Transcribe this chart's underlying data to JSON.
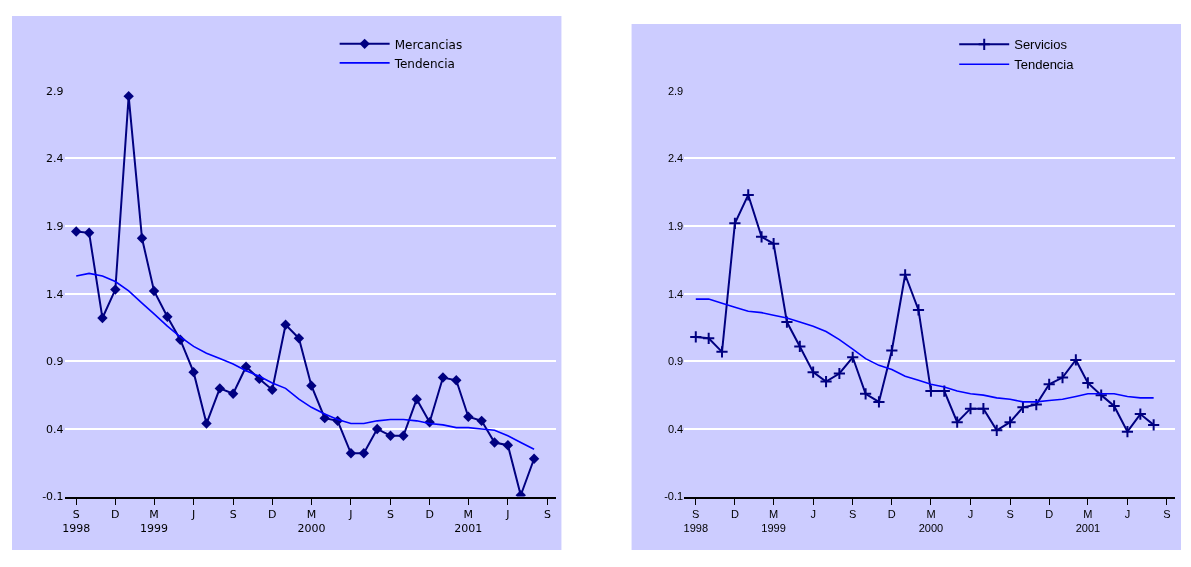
{
  "chart_data": [
    {
      "type": "line",
      "x": [
        "1998-09",
        "1998-10",
        "1998-11",
        "1998-12",
        "1999-01",
        "1999-02",
        "1999-03",
        "1999-04",
        "1999-05",
        "1999-06",
        "1999-07",
        "1999-08",
        "1999-09",
        "1999-10",
        "1999-11",
        "1999-12",
        "2000-01",
        "2000-02",
        "2000-03",
        "2000-04",
        "2000-05",
        "2000-06",
        "2000-07",
        "2000-08",
        "2000-09",
        "2000-10",
        "2000-11",
        "2000-12",
        "2001-01",
        "2001-02",
        "2001-03",
        "2001-04",
        "2001-05",
        "2001-06",
        "2001-07",
        "2001-08"
      ],
      "series": [
        {
          "name": "Mercancias",
          "color": "#000080",
          "marker": "diamond",
          "values": [
            1.86,
            1.85,
            1.22,
            1.43,
            2.86,
            1.81,
            1.42,
            1.23,
            1.06,
            0.82,
            0.44,
            0.7,
            0.66,
            0.86,
            0.77,
            0.69,
            1.17,
            1.07,
            0.72,
            0.48,
            0.46,
            0.22,
            0.22,
            0.4,
            0.35,
            0.35,
            0.62,
            0.45,
            0.78,
            0.76,
            0.49,
            0.46,
            0.3,
            0.28,
            -0.09,
            0.18
          ]
        },
        {
          "name": "Tendencia",
          "color": "#0000ff",
          "marker": "none",
          "values": [
            1.53,
            1.55,
            1.53,
            1.49,
            1.42,
            1.33,
            1.25,
            1.16,
            1.08,
            1.01,
            0.96,
            0.92,
            0.88,
            0.83,
            0.79,
            0.74,
            0.7,
            0.62,
            0.56,
            0.51,
            0.47,
            0.44,
            0.44,
            0.46,
            0.47,
            0.47,
            0.46,
            0.44,
            0.43,
            0.41,
            0.41,
            0.4,
            0.39,
            0.35,
            0.3,
            0.25
          ]
        }
      ],
      "xlim": [
        "1998-08-05",
        "2001-09-20"
      ],
      "xticks": [
        {
          "value": "1998-09",
          "label": "S\n1998"
        },
        {
          "value": "1998-12",
          "label": "D"
        },
        {
          "value": "1999-03",
          "label": "M\n1999"
        },
        {
          "value": "1999-06",
          "label": "J"
        },
        {
          "value": "1999-09",
          "label": "S"
        },
        {
          "value": "1999-12",
          "label": "D"
        },
        {
          "value": "2000-03",
          "label": "M\n2000"
        },
        {
          "value": "2000-06",
          "label": "J"
        },
        {
          "value": "2000-09",
          "label": "S"
        },
        {
          "value": "2000-12",
          "label": "D"
        },
        {
          "value": "2001-03",
          "label": "M\n2001"
        },
        {
          "value": "2001-06",
          "label": "J"
        },
        {
          "value": "2001-09",
          "label": "S"
        }
      ],
      "ylim": [
        -0.1,
        2.9
      ],
      "yticks": [
        -0.1,
        0.4,
        0.9,
        1.4,
        1.9,
        2.4,
        2.9
      ],
      "grid": "y",
      "legend": "top right",
      "line_style": "solid"
    },
    {
      "type": "line",
      "x": [
        "1998-09",
        "1998-10",
        "1998-11",
        "1998-12",
        "1999-01",
        "1999-02",
        "1999-03",
        "1999-04",
        "1999-05",
        "1999-06",
        "1999-07",
        "1999-08",
        "1999-09",
        "1999-10",
        "1999-11",
        "1999-12",
        "2000-01",
        "2000-02",
        "2000-03",
        "2000-04",
        "2000-05",
        "2000-06",
        "2000-07",
        "2000-08",
        "2000-09",
        "2000-10",
        "2000-11",
        "2000-12",
        "2001-01",
        "2001-02",
        "2001-03",
        "2001-04",
        "2001-05",
        "2001-06",
        "2001-07",
        "2001-08"
      ],
      "series": [
        {
          "name": "Servicios",
          "color": "#000080",
          "marker": "cross",
          "values": [
            1.08,
            1.07,
            0.97,
            1.92,
            2.13,
            1.82,
            1.77,
            1.19,
            1.01,
            0.82,
            0.75,
            0.81,
            0.93,
            0.66,
            0.6,
            0.98,
            1.54,
            1.28,
            0.68,
            0.68,
            0.45,
            0.55,
            0.55,
            0.39,
            0.45,
            0.56,
            0.58,
            0.73,
            0.78,
            0.91,
            0.74,
            0.65,
            0.57,
            0.38,
            0.51,
            0.43
          ]
        },
        {
          "name": "Tendencia",
          "color": "#0000ff",
          "marker": "none",
          "values": [
            1.36,
            1.36,
            1.33,
            1.3,
            1.27,
            1.26,
            1.24,
            1.22,
            1.19,
            1.16,
            1.12,
            1.06,
            0.99,
            0.92,
            0.87,
            0.84,
            0.79,
            0.76,
            0.73,
            0.71,
            0.68,
            0.66,
            0.65,
            0.63,
            0.62,
            0.6,
            0.6,
            0.61,
            0.62,
            0.64,
            0.66,
            0.66,
            0.66,
            0.64,
            0.63,
            0.63
          ]
        }
      ],
      "xlim": [
        "1998-08-05",
        "2001-09-20"
      ],
      "xticks": [
        {
          "value": "1998-09",
          "label": "S\n1998"
        },
        {
          "value": "1998-12",
          "label": "D"
        },
        {
          "value": "1999-03",
          "label": "M\n1999"
        },
        {
          "value": "1999-06",
          "label": "J"
        },
        {
          "value": "1999-09",
          "label": "S"
        },
        {
          "value": "1999-12",
          "label": "D"
        },
        {
          "value": "2000-03",
          "label": "M\n2000"
        },
        {
          "value": "2000-06",
          "label": "J"
        },
        {
          "value": "2000-09",
          "label": "S"
        },
        {
          "value": "2000-12",
          "label": "D"
        },
        {
          "value": "2001-03",
          "label": "M\n2001"
        },
        {
          "value": "2001-06",
          "label": "J"
        },
        {
          "value": "2001-09",
          "label": "S"
        }
      ],
      "ylim": [
        -0.1,
        2.9
      ],
      "yticks": [
        -0.1,
        0.4,
        0.9,
        1.4,
        1.9,
        2.4,
        2.9
      ],
      "grid": "y",
      "legend": "top right",
      "line_style": "solid"
    }
  ]
}
